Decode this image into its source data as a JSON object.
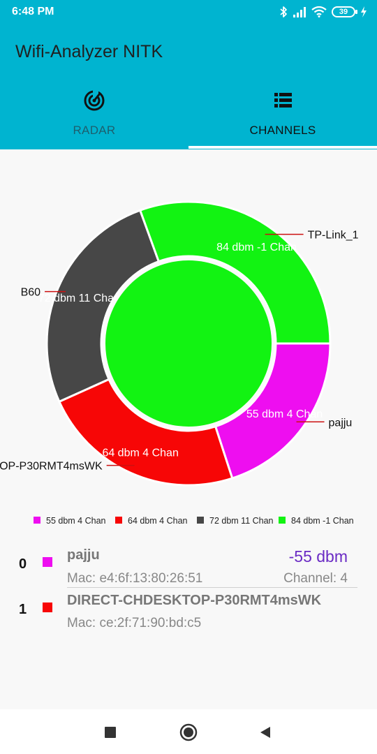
{
  "status_bar": {
    "time": "6:48 PM",
    "battery": "39"
  },
  "app": {
    "title": "Wifi-Analyzer NITK"
  },
  "tabs": [
    {
      "label": "RADAR",
      "icon": "radar-icon",
      "selected": false
    },
    {
      "label": "CHANNELS",
      "icon": "list-icon",
      "selected": true
    }
  ],
  "chart_data": {
    "type": "pie",
    "style": "donut",
    "values": [
      55,
      64,
      72,
      84
    ],
    "slice_labels": [
      "55 dbm 4 Chan",
      "64 dbm 4 Chan",
      "72 dbm 11 Chan",
      "84 dbm -1 Chan"
    ],
    "callout_labels": [
      "pajju",
      "DIRECT-CHDESKTOP-P30RMT4msWK",
      "B60",
      "TP-Link_1"
    ],
    "colors": [
      "#ee0ef0",
      "#f70606",
      "#474747",
      "#12f312"
    ],
    "legend": [
      "55 dbm 4 Chan",
      "64 dbm 4 Chan",
      "72 dbm 11 Chan",
      "84 dbm -1 Chan"
    ],
    "legend_position": "bottom"
  },
  "networks": [
    {
      "index": "0",
      "ssid": "pajju",
      "mac": "Mac: e4:6f:13:80:26:51",
      "dbm": "-55 dbm",
      "channel": "Channel: 4",
      "color": "#ee0ef0"
    },
    {
      "index": "1",
      "ssid": "DIRECT-CHDESKTOP-P30RMT4msWK",
      "mac": "Mac: ce:2f:71:90:bd:c5",
      "color": "#f70606"
    }
  ]
}
